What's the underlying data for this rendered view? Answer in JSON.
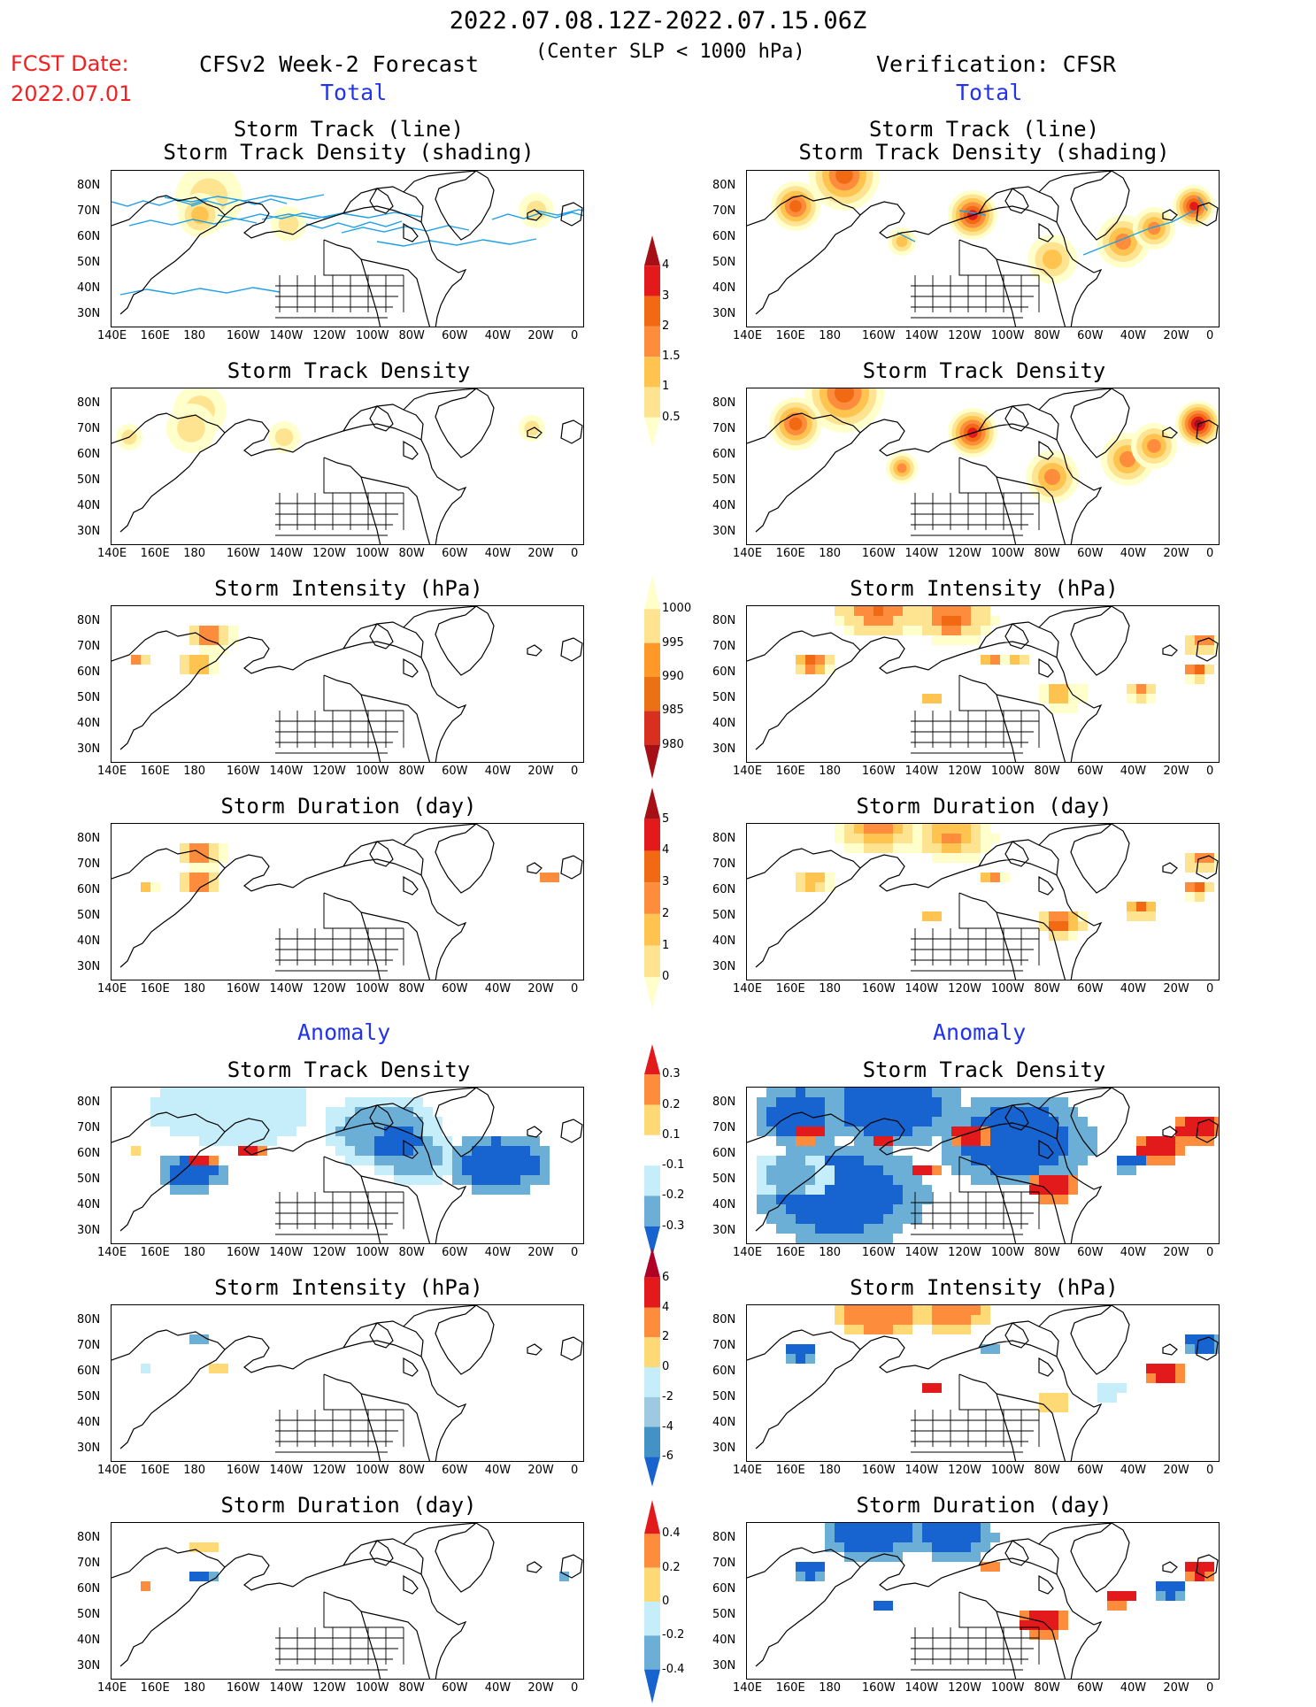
{
  "header": {
    "title": "2022.07.08.12Z-2022.07.15.06Z",
    "subtitle": "(Center SLP < 1000 hPa)",
    "fcst_label": "FCST Date:",
    "fcst_date": "2022.07.01",
    "left_heading": "CFSv2 Week-2 Forecast",
    "right_heading": "Verification: CFSR",
    "section_total": "Total",
    "section_anomaly": "Anomaly"
  },
  "panel_titles": {
    "track_line": "Storm Track (line)",
    "track_shading": "Storm Track Density (shading)",
    "density": "Storm Track Density",
    "intensity": "Storm Intensity (hPa)",
    "duration": "Storm Duration (day)"
  },
  "axes": {
    "lon_ticks": [
      "140E",
      "160E",
      "180",
      "160W",
      "140W",
      "120W",
      "100W",
      "80W",
      "60W",
      "40W",
      "20W",
      "0"
    ],
    "lat_ticks": [
      "80N",
      "70N",
      "60N",
      "50N",
      "40N",
      "30N"
    ]
  },
  "colorbars": [
    {
      "id": "total-density",
      "labels": [
        "4",
        "3",
        "2",
        "1.5",
        "1",
        "0.5"
      ],
      "colors": [
        "#a50f15",
        "#e31a1c",
        "#f16913",
        "#fd8d3c",
        "#fec44f",
        "#fee391",
        "#ffffcc"
      ]
    },
    {
      "id": "total-intensity",
      "labels": [
        "1000",
        "995",
        "990",
        "985",
        "980"
      ],
      "colors": [
        "#ffffcc",
        "#fee391",
        "#fe9929",
        "#ec7014",
        "#d7301f",
        "#a50f15"
      ]
    },
    {
      "id": "total-duration",
      "labels": [
        "5",
        "4",
        "3",
        "2",
        "1",
        "0"
      ],
      "colors": [
        "#a50f15",
        "#e31a1c",
        "#f16913",
        "#fd8d3c",
        "#fec44f",
        "#fee391",
        "#ffffcc"
      ]
    },
    {
      "id": "anom-density",
      "labels": [
        "0.3",
        "0.2",
        "0.1",
        "-0.1",
        "-0.2",
        "-0.3"
      ],
      "colors": [
        "#e31a1c",
        "#fd8d3c",
        "#fed976",
        "#ffffff",
        "#c6eefa",
        "#6baed6",
        "#1764d0"
      ]
    },
    {
      "id": "anom-intensity",
      "labels": [
        "6",
        "4",
        "2",
        "0",
        "-2",
        "-4",
        "-6"
      ],
      "colors": [
        "#b10026",
        "#e31a1c",
        "#fd8d3c",
        "#fed976",
        "#c6eefa",
        "#9ecae1",
        "#4292c6",
        "#1764d0"
      ]
    },
    {
      "id": "anom-duration",
      "labels": [
        "0.4",
        "0.2",
        "0",
        "-0.2",
        "-0.4"
      ],
      "colors": [
        "#e31a1c",
        "#fd8d3c",
        "#fed976",
        "#c6eefa",
        "#6baed6",
        "#1764d0"
      ]
    }
  ]
}
